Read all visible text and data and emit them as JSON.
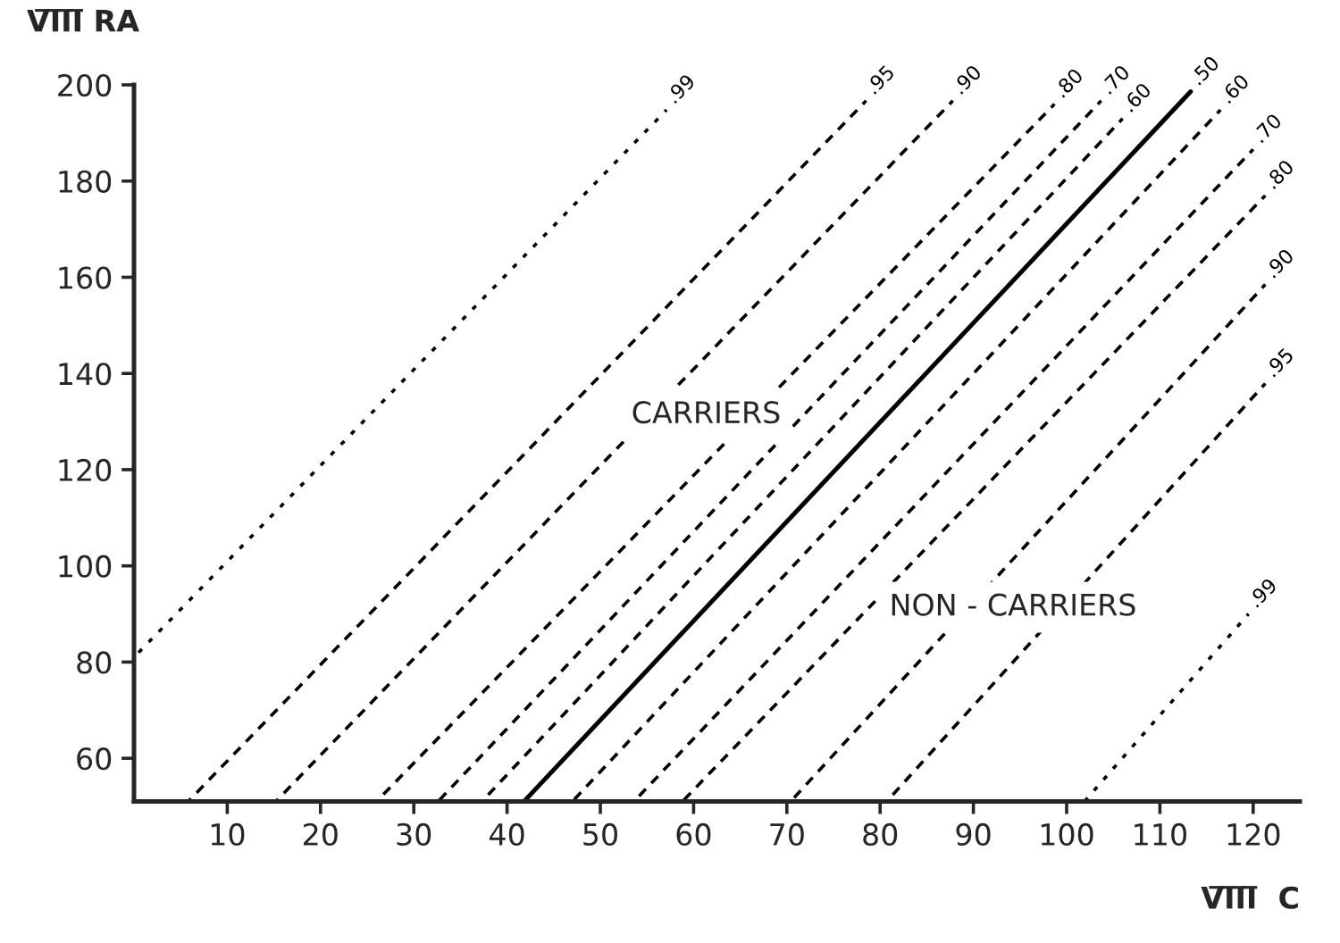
{
  "chart_data": {
    "type": "line",
    "xlabel": "V̅I̅I̅I̅  C",
    "ylabel": "V̅I̅I̅I̅ RA",
    "xlim": [
      0,
      125
    ],
    "ylim": [
      51,
      200
    ],
    "xticks": [
      10,
      20,
      30,
      40,
      50,
      60,
      70,
      80,
      90,
      100,
      110,
      120
    ],
    "yticks": [
      60,
      80,
      100,
      120,
      140,
      160,
      180,
      200
    ],
    "grid": false,
    "legend": false,
    "marker": "none",
    "series": [
      {
        "name": ".99",
        "color": "#000000",
        "line_style": "dotted",
        "x": [
          0,
          57.1
        ],
        "values": [
          81,
          194.8
        ]
      },
      {
        "name": ".95",
        "color": "#000000",
        "line_style": "dashed",
        "x": [
          5.8,
          78.5
        ],
        "values": [
          51,
          196.7
        ]
      },
      {
        "name": ".90",
        "color": "#000000",
        "line_style": "dashed",
        "x": [
          15.2,
          87.8
        ],
        "values": [
          51,
          196.7
        ]
      },
      {
        "name": ".80",
        "color": "#000000",
        "line_style": "dashed",
        "x": [
          26,
          98.7
        ],
        "values": [
          51,
          196
        ]
      },
      {
        "name": ".70",
        "color": "#000000",
        "line_style": "dashed",
        "x": [
          32.6,
          103.7
        ],
        "values": [
          51,
          196.7
        ]
      },
      {
        "name": ".60",
        "color": "#000000",
        "line_style": "dashed",
        "x": [
          37.3,
          106
        ],
        "values": [
          51,
          193
        ]
      },
      {
        "name": ".50",
        "color": "#000000",
        "line_style": "solid",
        "x": [
          41.8,
          113.3
        ],
        "values": [
          51,
          198.6
        ]
      },
      {
        "name": ".60",
        "color": "#000000",
        "line_style": "dashed",
        "x": [
          47,
          116.5
        ],
        "values": [
          51,
          194.8
        ]
      },
      {
        "name": ".70",
        "color": "#000000",
        "line_style": "dashed",
        "x": [
          53.6,
          120
        ],
        "values": [
          51,
          186.6
        ]
      },
      {
        "name": ".80",
        "color": "#000000",
        "line_style": "dashed",
        "x": [
          58.8,
          121.3
        ],
        "values": [
          51,
          177
        ]
      },
      {
        "name": ".90",
        "color": "#000000",
        "line_style": "dashed",
        "x": [
          70.4,
          121.3
        ],
        "values": [
          51,
          158.5
        ]
      },
      {
        "name": ".95",
        "color": "#000000",
        "line_style": "dashed",
        "x": [
          80.7,
          121.3
        ],
        "values": [
          51,
          137.9
        ]
      },
      {
        "name": ".99",
        "color": "#000000",
        "line_style": "dotted",
        "x": [
          101.9,
          119.5
        ],
        "values": [
          51,
          90
        ]
      }
    ],
    "annotations": [
      "CARRIERS",
      "NON - CARRIERS"
    ]
  }
}
